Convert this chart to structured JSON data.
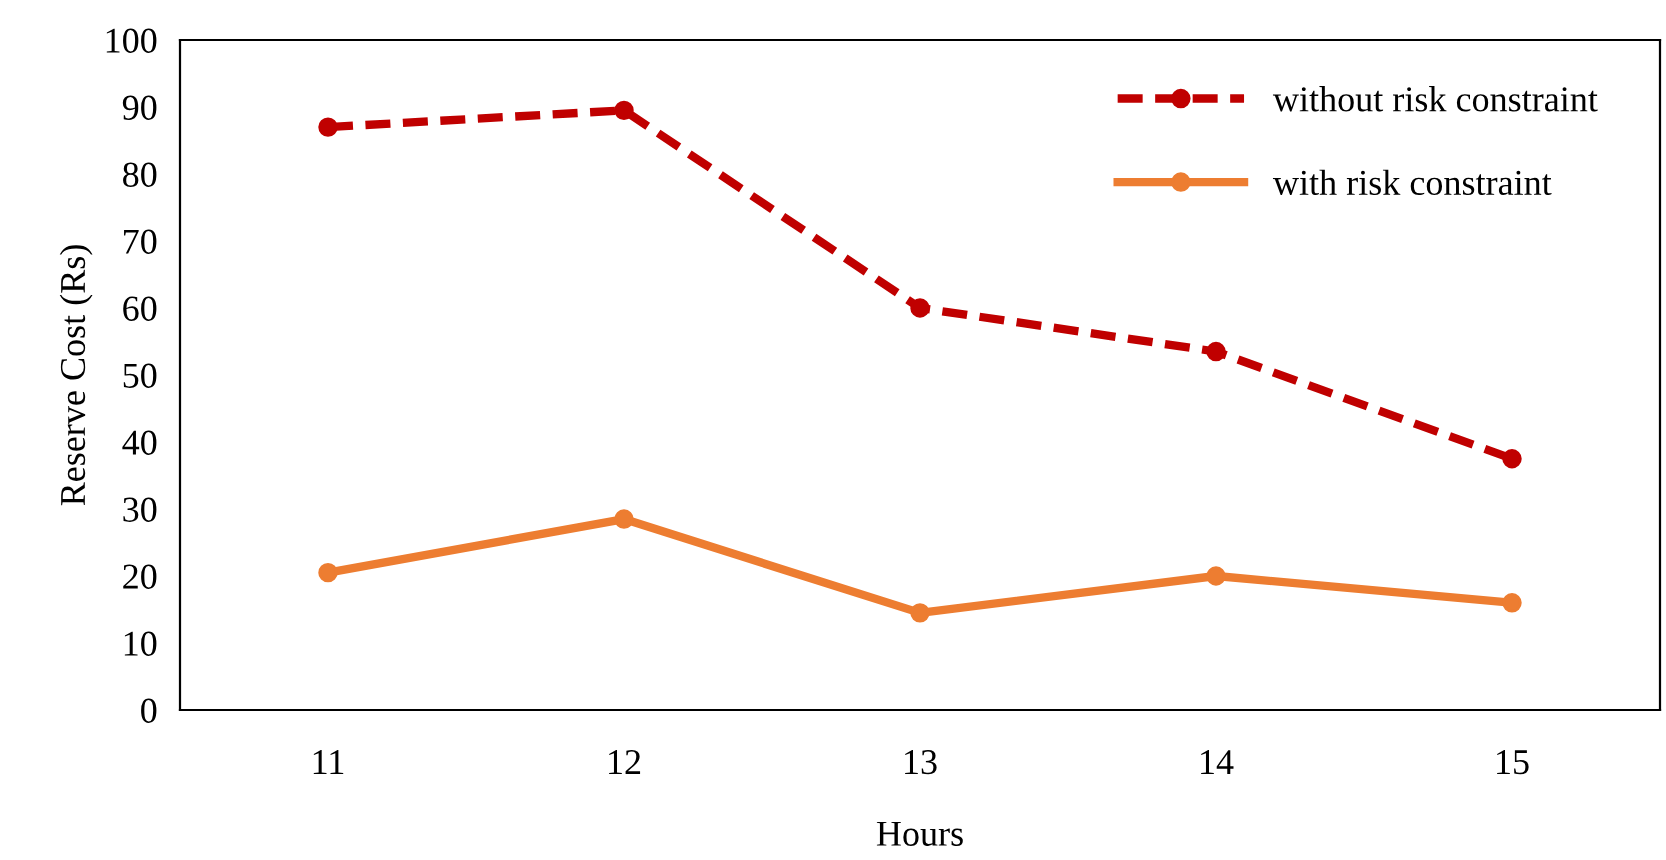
{
  "chart_data": {
    "type": "line",
    "xlabel": "Hours",
    "ylabel": "Reserve Cost (Rs)",
    "categories": [
      "11",
      "12",
      "13",
      "14",
      "15"
    ],
    "series": [
      {
        "name": "without risk constraint",
        "color": "#c00000",
        "values": [
          87,
          89.5,
          60,
          53.5,
          37.5
        ],
        "line_style": "dashed"
      },
      {
        "name": "with risk constraint",
        "color": "#ed7d31",
        "values": [
          20.5,
          28.5,
          14.5,
          20,
          16
        ],
        "line_style": "solid"
      }
    ],
    "ylim": [
      0,
      100
    ],
    "yticks": [
      0,
      10,
      20,
      30,
      40,
      50,
      60,
      70,
      80,
      90,
      100
    ],
    "grid": false,
    "legend": "top right",
    "marker": "circle"
  }
}
